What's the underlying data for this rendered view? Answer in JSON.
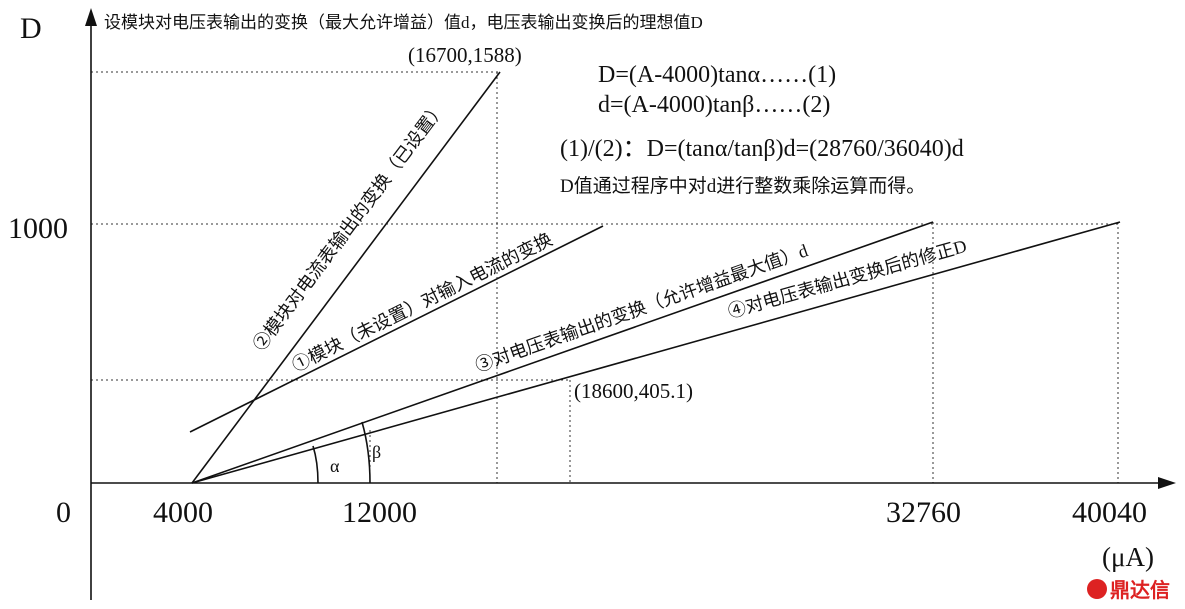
{
  "header": {
    "axis_label": "D",
    "title": "设模块对电压表输出的变换（最大允许增益）值d，电压表输出变换后的理想值D"
  },
  "points": {
    "top": "(16700,1588)",
    "bottom": "(18600,405.1)"
  },
  "formulas": [
    "D=(A-4000)tanα……(1)",
    "d=(A-4000)tanβ……(2)",
    "(1)/(2)：D=(tanα/tanβ)d=(28760/36040)d",
    "D值通过程序中对d进行整数乘除运算而得。"
  ],
  "y_ticks": [
    "1000",
    "0"
  ],
  "x_ticks": [
    "4000",
    "12000",
    "32760",
    "40040"
  ],
  "x_unit": "(μA)",
  "lines": [
    "②模块对电流表输出的变换（已设置）",
    "①模块（未设置）对输入电流的变换",
    "③对电压表输出的变换（允许增益最大值）d",
    "④对电压表输出变换后的修正D"
  ],
  "angles": [
    "α",
    "β"
  ],
  "watermark": "鼎达信"
}
